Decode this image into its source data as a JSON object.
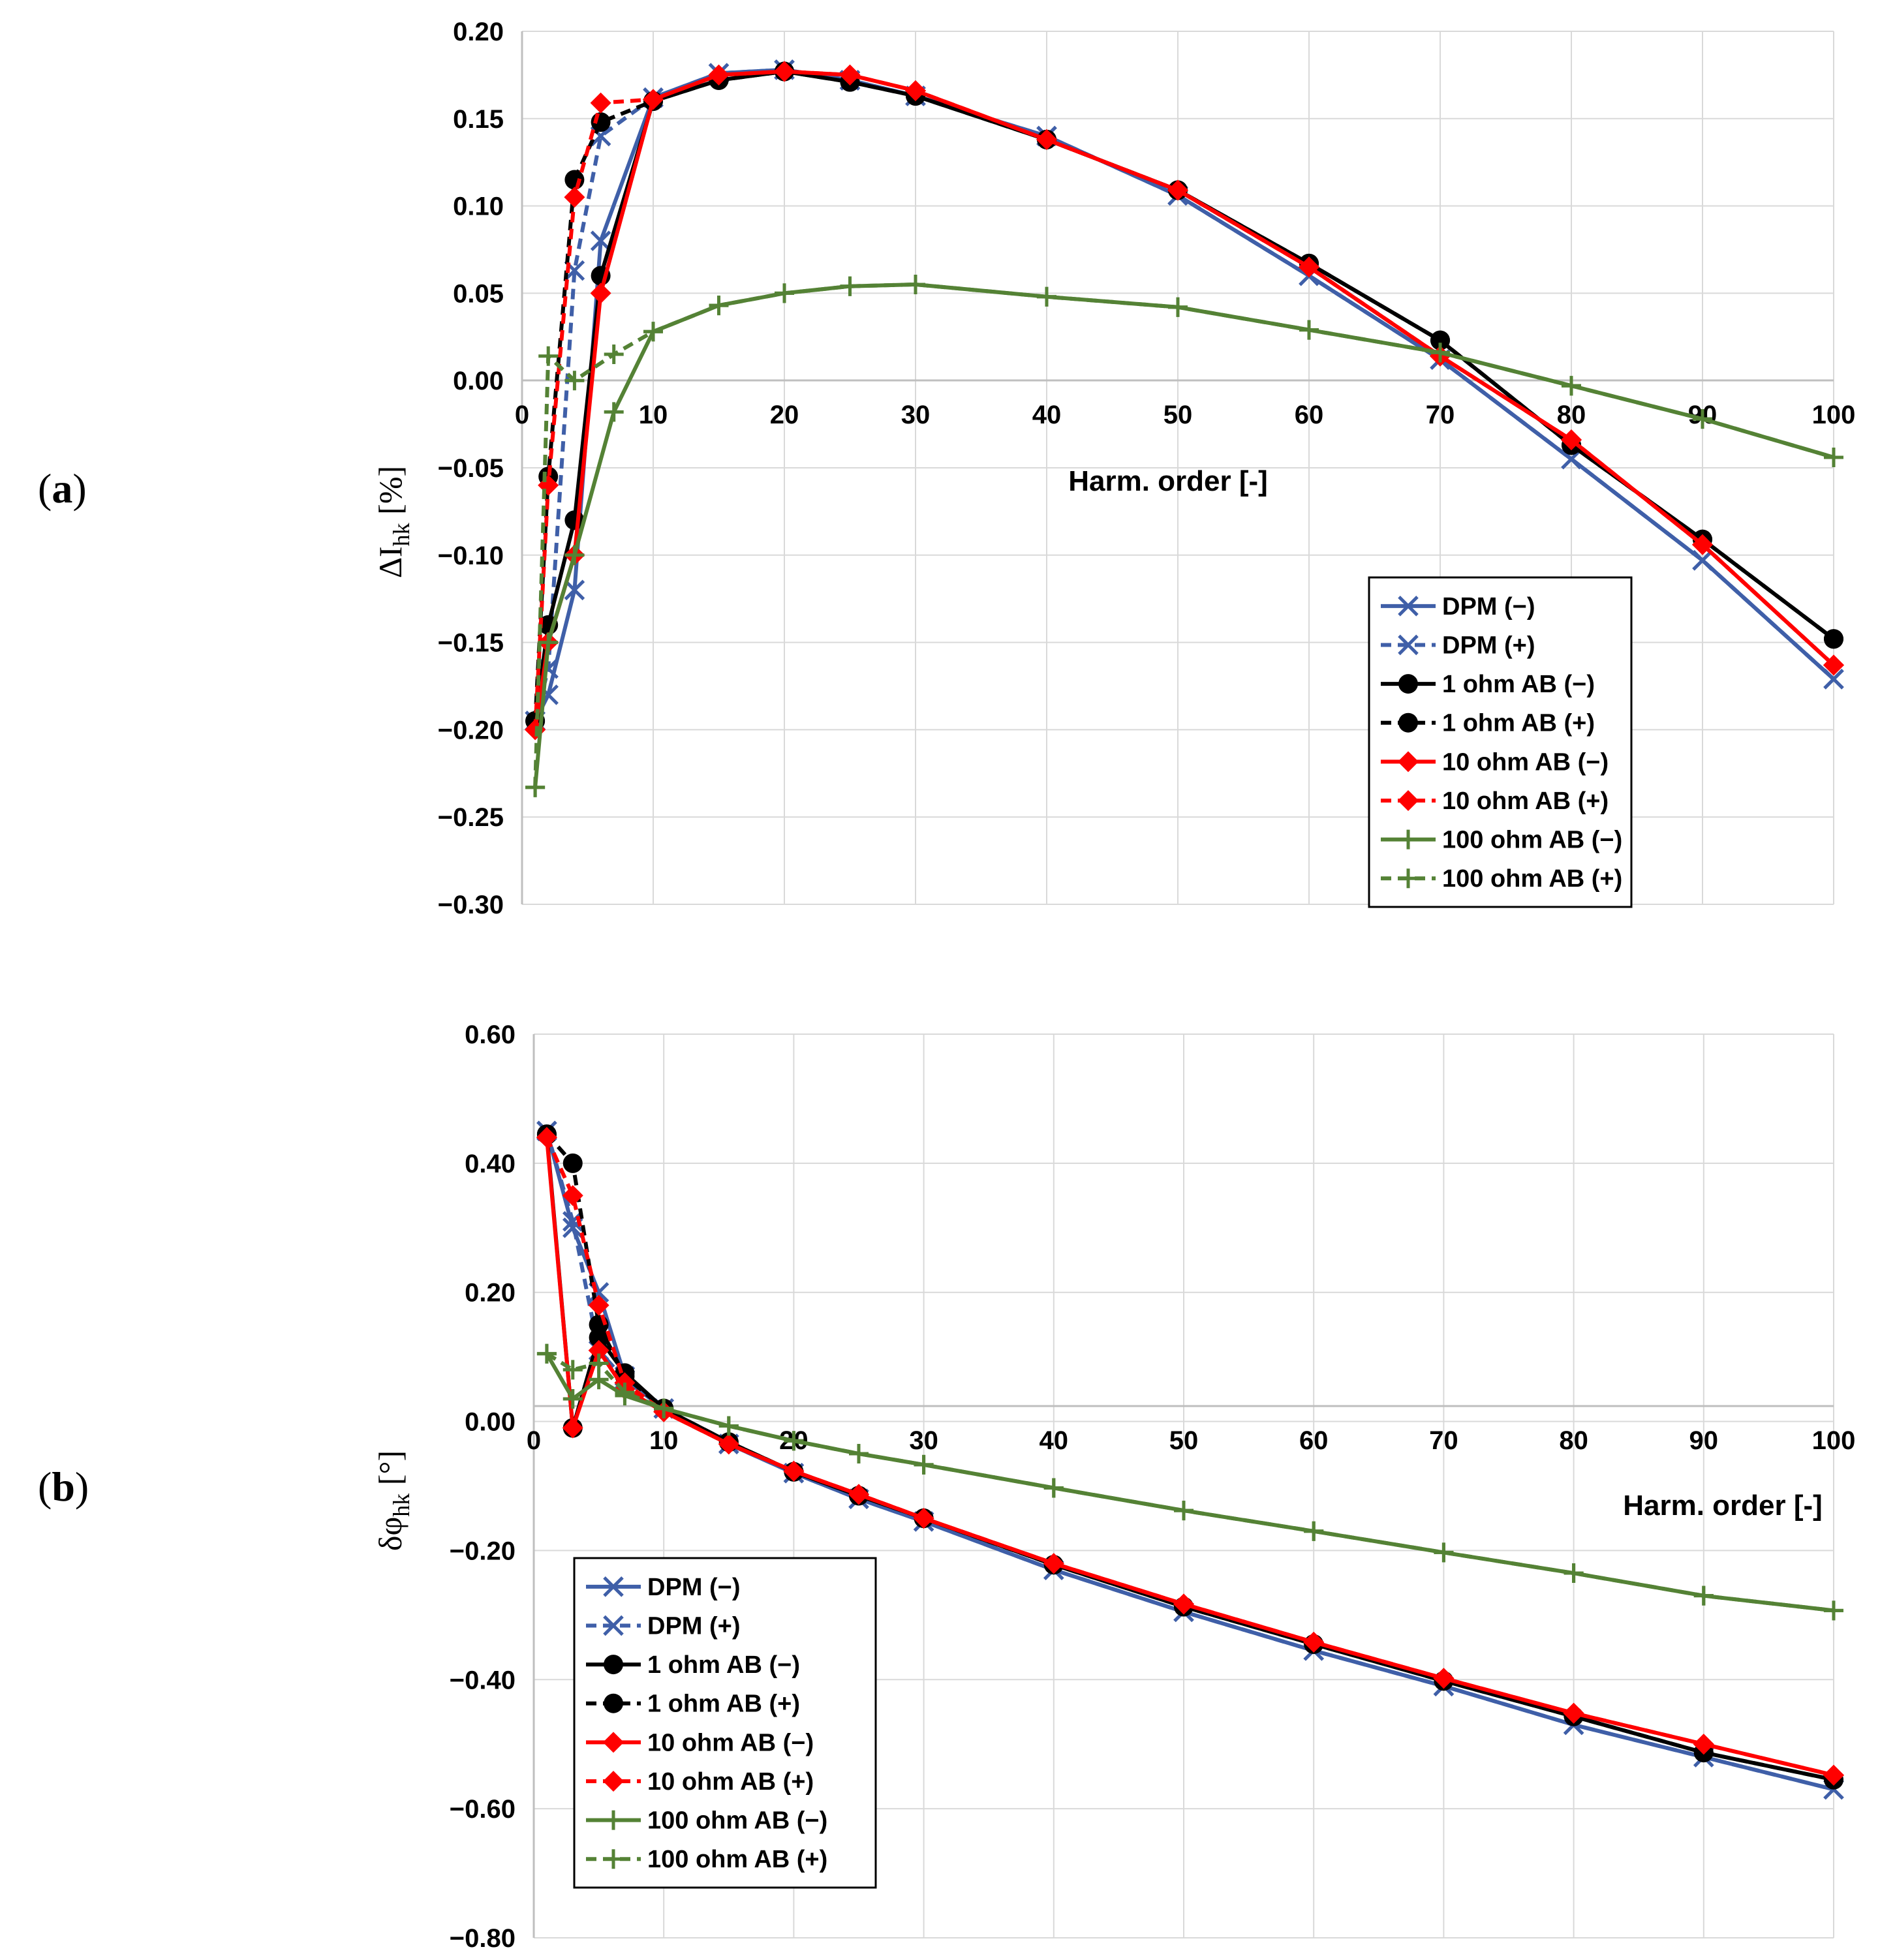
{
  "chart_data": [
    {
      "type": "line",
      "panel_label": "a",
      "xlabel": "Harm. order [-]",
      "ylabel": {
        "base": "ΔI",
        "sub": "hk",
        "unit": " [%]"
      },
      "xlim": [
        0,
        100
      ],
      "ylim": [
        -0.3,
        0.2
      ],
      "xticks": [
        0,
        10,
        20,
        30,
        40,
        50,
        60,
        70,
        80,
        90,
        100
      ],
      "yticks": [
        0.2,
        0.15,
        0.1,
        0.05,
        0.0,
        -0.05,
        -0.1,
        -0.15,
        -0.2,
        -0.25,
        -0.3
      ],
      "ytick_labels": [
        "0.20",
        "0.15",
        "0.10",
        "0.05",
        "0.00",
        "−0.05",
        "−0.10",
        "−0.15",
        "−0.20",
        "−0.25",
        "−0.30"
      ],
      "grid": true,
      "legend_position": "bottom-right",
      "series": [
        {
          "name": "DPM (−)",
          "color": "#3F5FA8",
          "dash": false,
          "marker": "x",
          "x": [
            1,
            2,
            4,
            6,
            10,
            15,
            20,
            25,
            30,
            40,
            50,
            60,
            70,
            80,
            90,
            100
          ],
          "y": [
            -0.195,
            -0.18,
            -0.12,
            0.08,
            0.162,
            0.176,
            0.178,
            0.172,
            0.163,
            0.14,
            0.106,
            0.06,
            0.012,
            -0.045,
            -0.103,
            -0.171
          ]
        },
        {
          "name": "DPM (+)",
          "color": "#3F5FA8",
          "dash": true,
          "marker": "x",
          "x": [
            1,
            2,
            4,
            6,
            10,
            15,
            20,
            25,
            30,
            40,
            50,
            60,
            70,
            80,
            90,
            100
          ],
          "y": [
            -0.195,
            -0.165,
            0.063,
            0.14,
            0.162,
            0.176,
            0.178,
            0.172,
            0.163,
            0.14,
            0.106,
            0.06,
            0.012,
            -0.045,
            -0.103,
            -0.171
          ]
        },
        {
          "name": "1 ohm AB (−)",
          "color": "#000000",
          "dash": false,
          "marker": "circle",
          "x": [
            1,
            2,
            4,
            6,
            10,
            15,
            20,
            25,
            30,
            40,
            50,
            60,
            70,
            80,
            90,
            100
          ],
          "y": [
            -0.195,
            -0.14,
            -0.08,
            0.06,
            0.16,
            0.172,
            0.177,
            0.171,
            0.163,
            0.138,
            0.109,
            0.067,
            0.023,
            -0.037,
            -0.091,
            -0.148
          ]
        },
        {
          "name": "1 ohm AB (+)",
          "color": "#000000",
          "dash": true,
          "marker": "circle",
          "x": [
            1,
            2,
            4,
            6,
            10,
            15,
            20,
            25,
            30,
            40,
            50,
            60,
            70,
            80,
            90,
            100
          ],
          "y": [
            -0.195,
            -0.055,
            0.115,
            0.148,
            0.16,
            0.172,
            0.177,
            0.171,
            0.163,
            0.138,
            0.109,
            0.067,
            0.023,
            -0.037,
            -0.091,
            -0.148
          ]
        },
        {
          "name": "10 ohm AB (−)",
          "color": "#FF0000",
          "dash": false,
          "marker": "diamond",
          "x": [
            1,
            2,
            4,
            6,
            10,
            15,
            20,
            25,
            30,
            40,
            50,
            60,
            70,
            80,
            90,
            100
          ],
          "y": [
            -0.2,
            -0.15,
            -0.1,
            0.05,
            0.161,
            0.175,
            0.177,
            0.175,
            0.166,
            0.138,
            0.109,
            0.065,
            0.014,
            -0.034,
            -0.094,
            -0.163
          ]
        },
        {
          "name": "10 ohm AB (+)",
          "color": "#FF0000",
          "dash": true,
          "marker": "diamond",
          "x": [
            1,
            2,
            4,
            6,
            10,
            15,
            20,
            25,
            30,
            40,
            50,
            60,
            70,
            80,
            90,
            100
          ],
          "y": [
            -0.2,
            -0.06,
            0.105,
            0.159,
            0.161,
            0.175,
            0.177,
            0.175,
            0.166,
            0.138,
            0.109,
            0.065,
            0.014,
            -0.034,
            -0.094,
            -0.163
          ]
        },
        {
          "name": "100 ohm AB (−)",
          "color": "#548235",
          "dash": false,
          "marker": "plus",
          "x": [
            1,
            2,
            4,
            7,
            10,
            15,
            20,
            25,
            30,
            40,
            50,
            60,
            70,
            80,
            90,
            100
          ],
          "y": [
            -0.233,
            -0.15,
            -0.1,
            -0.018,
            0.028,
            0.043,
            0.05,
            0.054,
            0.055,
            0.048,
            0.042,
            0.029,
            0.016,
            -0.003,
            -0.022,
            -0.044
          ]
        },
        {
          "name": "100 ohm AB (+)",
          "color": "#548235",
          "dash": true,
          "marker": "plus",
          "x": [
            1,
            2,
            4,
            7,
            10,
            15,
            20,
            25,
            30,
            40,
            50,
            60,
            70,
            80,
            90,
            100
          ],
          "y": [
            -0.233,
            0.014,
            0.0,
            0.015,
            0.028,
            0.043,
            0.05,
            0.054,
            0.055,
            0.048,
            0.042,
            0.029,
            0.016,
            -0.003,
            -0.022,
            -0.044
          ]
        }
      ]
    },
    {
      "type": "line",
      "panel_label": "b",
      "xlabel": "Harm. order [-]",
      "ylabel": {
        "base": "δφ",
        "sub": "hk",
        "unit": " [°]"
      },
      "xlim": [
        0,
        100
      ],
      "ylim": [
        -0.8,
        0.6
      ],
      "xticks": [
        0,
        10,
        20,
        30,
        40,
        50,
        60,
        70,
        80,
        90,
        100
      ],
      "yticks": [
        0.6,
        0.4,
        0.2,
        0.0,
        -0.2,
        -0.4,
        -0.6,
        -0.8
      ],
      "ytick_labels": [
        "0.60",
        "0.40",
        "0.20",
        "0.00",
        "−0.20",
        "−0.40",
        "−0.60",
        "−0.80"
      ],
      "grid": true,
      "legend_position": "bottom-left",
      "series": [
        {
          "name": "DPM (−)",
          "color": "#3F5FA8",
          "dash": false,
          "marker": "x",
          "x": [
            1,
            3,
            5,
            7,
            10,
            15,
            20,
            25,
            30,
            40,
            50,
            60,
            70,
            80,
            90,
            100
          ],
          "y": [
            0.45,
            0.3,
            0.2,
            0.07,
            0.02,
            -0.035,
            -0.08,
            -0.12,
            -0.155,
            -0.23,
            -0.295,
            -0.355,
            -0.41,
            -0.47,
            -0.52,
            -0.57
          ]
        },
        {
          "name": "DPM (+)",
          "color": "#3F5FA8",
          "dash": true,
          "marker": "x",
          "x": [
            1,
            3,
            5,
            7,
            10,
            15,
            20,
            25,
            30,
            40,
            50,
            60,
            70,
            80,
            90,
            100
          ],
          "y": [
            0.45,
            0.31,
            0.11,
            0.065,
            0.02,
            -0.035,
            -0.08,
            -0.12,
            -0.155,
            -0.23,
            -0.295,
            -0.355,
            -0.41,
            -0.47,
            -0.52,
            -0.57
          ]
        },
        {
          "name": "1 ohm AB (−)",
          "color": "#000000",
          "dash": false,
          "marker": "circle",
          "x": [
            1,
            3,
            5,
            7,
            10,
            15,
            20,
            25,
            30,
            40,
            50,
            60,
            70,
            80,
            90,
            100
          ],
          "y": [
            0.445,
            -0.01,
            0.13,
            0.075,
            0.02,
            -0.032,
            -0.078,
            -0.115,
            -0.15,
            -0.222,
            -0.287,
            -0.345,
            -0.402,
            -0.457,
            -0.513,
            -0.555
          ]
        },
        {
          "name": "1 ohm AB (+)",
          "color": "#000000",
          "dash": true,
          "marker": "circle",
          "x": [
            1,
            3,
            5,
            7,
            10,
            15,
            20,
            25,
            30,
            40,
            50,
            60,
            70,
            80,
            90,
            100
          ],
          "y": [
            0.445,
            0.4,
            0.15,
            0.07,
            0.02,
            -0.032,
            -0.078,
            -0.115,
            -0.15,
            -0.222,
            -0.287,
            -0.345,
            -0.402,
            -0.457,
            -0.513,
            -0.555
          ]
        },
        {
          "name": "10 ohm AB (−)",
          "color": "#FF0000",
          "dash": false,
          "marker": "diamond",
          "x": [
            1,
            3,
            5,
            7,
            10,
            15,
            20,
            25,
            30,
            40,
            50,
            60,
            70,
            80,
            90,
            100
          ],
          "y": [
            0.44,
            -0.01,
            0.11,
            0.05,
            0.015,
            -0.035,
            -0.077,
            -0.113,
            -0.15,
            -0.22,
            -0.283,
            -0.342,
            -0.398,
            -0.452,
            -0.5,
            -0.548
          ]
        },
        {
          "name": "10 ohm AB (+)",
          "color": "#FF0000",
          "dash": true,
          "marker": "diamond",
          "x": [
            1,
            3,
            5,
            7,
            10,
            15,
            20,
            25,
            30,
            40,
            50,
            60,
            70,
            80,
            90,
            100
          ],
          "y": [
            0.44,
            0.35,
            0.18,
            0.06,
            0.015,
            -0.035,
            -0.077,
            -0.113,
            -0.15,
            -0.22,
            -0.283,
            -0.342,
            -0.398,
            -0.452,
            -0.5,
            -0.548
          ]
        },
        {
          "name": "100 ohm AB (−)",
          "color": "#548235",
          "dash": false,
          "marker": "plus",
          "x": [
            1,
            3,
            5,
            7,
            10,
            15,
            20,
            25,
            30,
            40,
            50,
            60,
            70,
            80,
            90,
            100
          ],
          "y": [
            0.105,
            0.035,
            0.065,
            0.04,
            0.02,
            -0.007,
            -0.03,
            -0.05,
            -0.067,
            -0.103,
            -0.138,
            -0.17,
            -0.203,
            -0.235,
            -0.27,
            -0.293
          ]
        },
        {
          "name": "100 ohm AB (+)",
          "color": "#548235",
          "dash": true,
          "marker": "plus",
          "x": [
            1,
            3,
            5,
            7,
            10,
            15,
            20,
            25,
            30,
            40,
            50,
            60,
            70,
            80,
            90,
            100
          ],
          "y": [
            0.105,
            0.08,
            0.09,
            0.045,
            0.02,
            -0.007,
            -0.03,
            -0.05,
            -0.067,
            -0.103,
            -0.138,
            -0.17,
            -0.203,
            -0.235,
            -0.27,
            -0.293
          ]
        }
      ]
    }
  ]
}
